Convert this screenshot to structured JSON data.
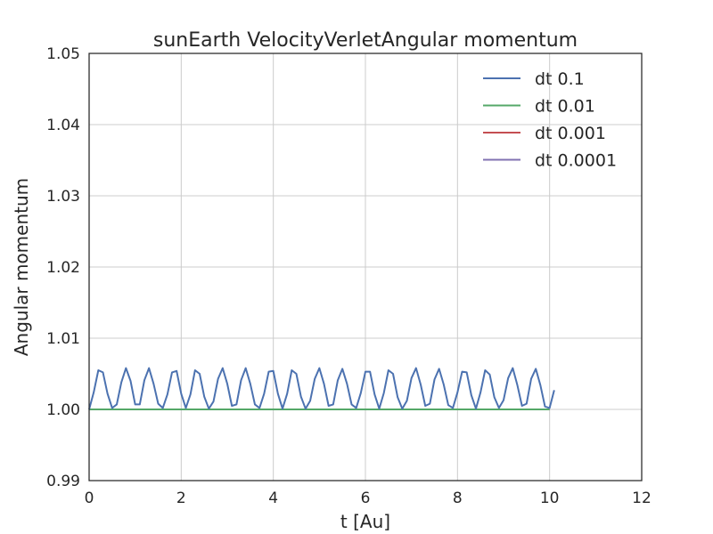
{
  "chart_data": {
    "type": "line",
    "title": "sunEarth VelocityVerletAngular momentum",
    "xlabel": "t [Au]",
    "ylabel": "Angular momentum",
    "xlim": [
      0,
      12
    ],
    "ylim": [
      0.99,
      1.05
    ],
    "xticks": [
      "0",
      "2",
      "4",
      "6",
      "8",
      "10",
      "12"
    ],
    "yticks": [
      "0.99",
      "1.00",
      "1.01",
      "1.02",
      "1.03",
      "1.04",
      "1.05"
    ],
    "grid": true,
    "legend_position": "top-right",
    "series": [
      {
        "name": "dt 0.1",
        "color": "#4c72b0",
        "x": [
          0.0,
          0.1,
          0.2,
          0.3,
          0.4,
          0.5,
          0.6,
          0.7,
          0.8,
          0.9,
          1.0,
          1.1,
          1.2,
          1.3,
          1.4,
          1.5,
          1.6,
          1.7,
          1.8,
          1.9,
          2.0,
          2.1,
          2.2,
          2.3,
          2.4,
          2.5,
          2.6,
          2.7,
          2.8,
          2.9,
          3.0,
          3.1,
          3.2,
          3.3,
          3.4,
          3.5,
          3.6,
          3.7,
          3.8,
          3.9,
          4.0,
          4.1,
          4.2,
          4.3,
          4.4,
          4.5,
          4.6,
          4.7,
          4.8,
          4.9,
          5.0,
          5.1,
          5.2,
          5.3,
          5.4,
          5.5,
          5.6,
          5.7,
          5.8,
          5.9,
          6.0,
          6.1,
          6.2,
          6.3,
          6.4,
          6.5,
          6.6,
          6.7,
          6.8,
          6.9,
          7.0,
          7.1,
          7.2,
          7.3,
          7.4,
          7.5,
          7.6,
          7.7,
          7.8,
          7.9,
          8.0,
          8.1,
          8.2,
          8.3,
          8.4,
          8.5,
          8.6,
          8.7,
          8.8,
          8.9,
          9.0,
          9.1,
          9.2,
          9.3,
          9.4,
          9.5,
          9.6,
          9.7,
          9.8,
          9.9,
          10.0,
          10.1
        ],
        "y": [
          1.0,
          1.0024,
          1.0055,
          1.0052,
          1.0022,
          1.0002,
          1.0007,
          1.0038,
          1.0058,
          1.004,
          1.0007,
          1.0007,
          1.0041,
          1.0058,
          1.0036,
          1.0008,
          1.0002,
          1.0021,
          1.0052,
          1.0054,
          1.0022,
          1.0002,
          1.0021,
          1.0055,
          1.005,
          1.0018,
          1.0001,
          1.0011,
          1.0043,
          1.0058,
          1.0036,
          1.0005,
          1.0007,
          1.0041,
          1.0058,
          1.0036,
          1.0007,
          1.0002,
          1.0022,
          1.0053,
          1.0054,
          1.0022,
          1.0001,
          1.0022,
          1.0055,
          1.005,
          1.0018,
          1.0001,
          1.0012,
          1.0043,
          1.0058,
          1.0036,
          1.0005,
          1.0007,
          1.0041,
          1.0057,
          1.0036,
          1.0007,
          1.0002,
          1.0023,
          1.0053,
          1.0053,
          1.0021,
          1.0001,
          1.0023,
          1.0055,
          1.005,
          1.0017,
          1.0001,
          1.0012,
          1.0044,
          1.0058,
          1.0035,
          1.0005,
          1.0008,
          1.0042,
          1.0057,
          1.0035,
          1.0006,
          1.0002,
          1.0024,
          1.0053,
          1.0052,
          1.002,
          1.0001,
          1.0024,
          1.0055,
          1.0049,
          1.0017,
          1.0002,
          1.0013,
          1.0044,
          1.0058,
          1.0034,
          1.0005,
          1.0008,
          1.0043,
          1.0057,
          1.0034,
          1.0004,
          1.0002,
          1.0027
        ]
      },
      {
        "name": "dt 0.01",
        "color": "#55a868",
        "x": [
          0,
          10.0
        ],
        "y": [
          1.0,
          1.0
        ]
      },
      {
        "name": "dt 0.001",
        "color": "#c44e52",
        "x": [
          0,
          10.0
        ],
        "y": [
          1.0,
          1.0
        ]
      },
      {
        "name": "dt 0.0001",
        "color": "#8172b2",
        "x": [
          0,
          10.0
        ],
        "y": [
          1.0,
          1.0
        ]
      }
    ]
  }
}
